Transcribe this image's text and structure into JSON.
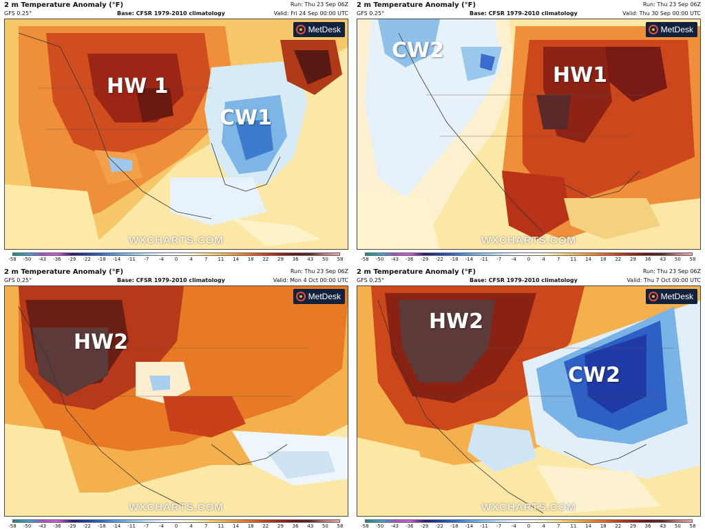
{
  "colorbar": {
    "ticks": [
      "-58",
      "-50",
      "-43",
      "-36",
      "-29",
      "-22",
      "-18",
      "-14",
      "-11",
      "-7",
      "-4",
      "0",
      "4",
      "7",
      "11",
      "14",
      "18",
      "22",
      "29",
      "36",
      "43",
      "50",
      "58"
    ],
    "colors": [
      "#1a8a6e",
      "#3aa5c9",
      "#a44fc9",
      "#d55bd8",
      "#2a1a6e",
      "#1f3fa8",
      "#2f6fd0",
      "#5a9ee0",
      "#8cc3ec",
      "#c2e0f4",
      "#eef6fb",
      "#ffffff",
      "#fff6d4",
      "#fbe08a",
      "#f7bd55",
      "#f29430",
      "#e86a1c",
      "#c9401a",
      "#9a2416",
      "#6a1410",
      "#5a2a2a",
      "#b77a7a",
      "#f5a5a5"
    ]
  },
  "panels": [
    {
      "title": "2 m Temperature Anomaly (°F)",
      "model": "GFS 0.25°",
      "base": "Base: CFSR 1979-2010 climatology",
      "run": "Run: Thu 23 Sep 06Z",
      "valid": "Valid: Fri 24 Sep 00:00 UTC",
      "brand": "MetDesk",
      "watermark": "WXCHARTS.COM",
      "labels": [
        {
          "id": "hw1",
          "text": "HW 1"
        },
        {
          "id": "cw1",
          "text": "CW1"
        }
      ]
    },
    {
      "title": "2 m Temperature Anomaly (°F)",
      "model": "GFS 0.25°",
      "base": "Base: CFSR 1979-2010 climatology",
      "run": "Run: Thu 23 Sep 06Z",
      "valid": "Valid: Thu 30 Sep 00:00 UTC",
      "brand": "MetDesk",
      "watermark": "WXCHARTS.COM",
      "labels": [
        {
          "id": "cw2",
          "text": "CW2"
        },
        {
          "id": "hw1",
          "text": "HW1"
        }
      ]
    },
    {
      "title": "2 m Temperature Anomaly (°F)",
      "model": "GFS 0.25°",
      "base": "Base: CFSR 1979-2010 climatology",
      "run": "Run: Thu 23 Sep 06Z",
      "valid": "Valid: Mon 4 Oct 00:00 UTC",
      "brand": "MetDesk",
      "watermark": "WXCHARTS.COM",
      "labels": [
        {
          "id": "hw2",
          "text": "HW2"
        }
      ]
    },
    {
      "title": "2 m Temperature Anomaly (°F)",
      "model": "GFS 0.25°",
      "base": "Base: CFSR 1979-2010 climatology",
      "run": "Run: Thu 23 Sep 06Z",
      "valid": "Valid: Thu 7 Oct 00:00 UTC",
      "brand": "MetDesk",
      "watermark": "WXCHARTS.COM",
      "labels": [
        {
          "id": "hw2",
          "text": "HW2"
        },
        {
          "id": "cw2",
          "text": "CW2"
        }
      ]
    }
  ]
}
